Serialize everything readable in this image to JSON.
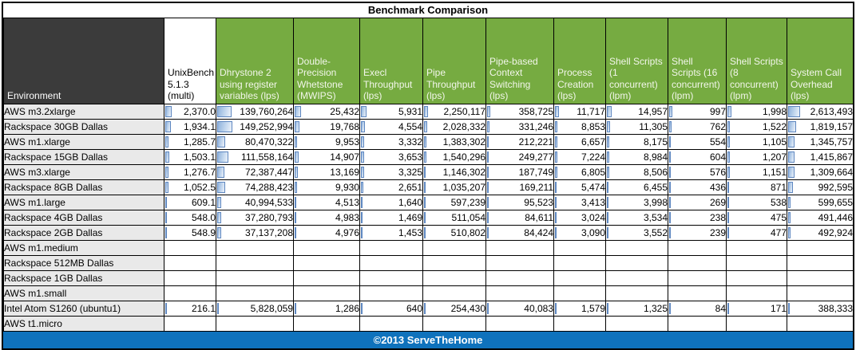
{
  "title": "Benchmark Comparison",
  "footer": {
    "text": "©2013 ServeTheHome"
  },
  "colors": {
    "header_dark": "#3b3b3b",
    "header_green": "#76ab41",
    "footer_blue": "#0f72bc",
    "databar_fill": "#c3d7ee",
    "databar_border": "#5e87c0",
    "env_cell_bg": "#e9e9e9"
  },
  "table": {
    "corner_header": "Environment",
    "columns": [
      {
        "label": "UnixBench 5.1.3 (multi)",
        "style": "plain"
      },
      {
        "label": "Dhrystone 2 using register variables (lps)",
        "style": "green"
      },
      {
        "label": "Double-Precision Whetstone (MWIPS)",
        "style": "green"
      },
      {
        "label": "Execl Throughput (lps)",
        "style": "green"
      },
      {
        "label": "Pipe Throughput (lps)",
        "style": "green"
      },
      {
        "label": "Pipe-based Context Switching (lps)",
        "style": "green"
      },
      {
        "label": "Process Creation (lps)",
        "style": "green"
      },
      {
        "label": "Shell Scripts (1 concurrent) (lpm)",
        "style": "green"
      },
      {
        "label": "Shell Scripts (16 concurrent) (lpm)",
        "style": "green"
      },
      {
        "label": "Shell Scripts (8 concurrent) (lpm)",
        "style": "green"
      },
      {
        "label": "System Call Overhead (lps)",
        "style": "green"
      }
    ],
    "rows": [
      {
        "env": "AWS m3.2xlarge",
        "values": [
          "2,370.0",
          "139,760,264",
          "25,432",
          "5,931",
          "2,250,117",
          "358,725",
          "11,717",
          "14,957",
          "997",
          "1,998",
          "2,613,493"
        ]
      },
      {
        "env": "Rackspace 30GB Dallas",
        "values": [
          "1,934.1",
          "149,252,994",
          "19,768",
          "4,554",
          "2,028,332",
          "331,246",
          "8,853",
          "11,305",
          "762",
          "1,522",
          "1,819,157"
        ]
      },
      {
        "env": "AWS m1.xlarge",
        "values": [
          "1,285.7",
          "80,470,322",
          "9,953",
          "3,332",
          "1,383,302",
          "212,221",
          "6,657",
          "8,175",
          "554",
          "1,105",
          "1,345,757"
        ]
      },
      {
        "env": "Rackspace 15GB Dallas",
        "values": [
          "1,503.1",
          "111,558,164",
          "14,907",
          "3,653",
          "1,540,296",
          "249,277",
          "7,224",
          "8,984",
          "604",
          "1,207",
          "1,415,867"
        ]
      },
      {
        "env": "AWS m3.xlarge",
        "values": [
          "1,276.7",
          "72,387,447",
          "13,169",
          "3,325",
          "1,146,302",
          "187,749",
          "6,805",
          "8,506",
          "576",
          "1,151",
          "1,309,664"
        ]
      },
      {
        "env": "Rackspace 8GB Dallas",
        "values": [
          "1,052.5",
          "74,288,423",
          "9,930",
          "2,651",
          "1,035,207",
          "169,211",
          "5,474",
          "6,455",
          "436",
          "871",
          "992,595"
        ]
      },
      {
        "env": "AWS m1.large",
        "values": [
          "609.1",
          "40,994,533",
          "4,513",
          "1,640",
          "597,239",
          "95,523",
          "3,413",
          "3,998",
          "269",
          "538",
          "599,655"
        ]
      },
      {
        "env": "Rackspace 4GB Dallas",
        "values": [
          "548.0",
          "37,280,793",
          "4,983",
          "1,469",
          "511,054",
          "84,611",
          "3,024",
          "3,534",
          "238",
          "475",
          "491,446"
        ]
      },
      {
        "env": "Rackspace 2GB Dallas",
        "values": [
          "548.9",
          "37,137,208",
          "4,976",
          "1,453",
          "510,802",
          "84,424",
          "3,090",
          "3,552",
          "239",
          "477",
          "492,924"
        ]
      },
      {
        "env": "AWS m1.medium",
        "values": [
          "",
          "",
          "",
          "",
          "",
          "",
          "",
          "",
          "",
          "",
          ""
        ]
      },
      {
        "env": "Rackspace 512MB Dallas",
        "values": [
          "",
          "",
          "",
          "",
          "",
          "",
          "",
          "",
          "",
          "",
          ""
        ]
      },
      {
        "env": "Rackspace 1GB Dallas",
        "values": [
          "",
          "",
          "",
          "",
          "",
          "",
          "",
          "",
          "",
          "",
          ""
        ]
      },
      {
        "env": "AWS m1.small",
        "values": [
          "",
          "",
          "",
          "",
          "",
          "",
          "",
          "",
          "",
          "",
          ""
        ]
      },
      {
        "env": "Intel Atom S1260 (ubuntu1)",
        "values": [
          "216.1",
          "5,828,059",
          "1,286",
          "640",
          "254,430",
          "40,083",
          "1,579",
          "1,325",
          "84",
          "171",
          "388,333"
        ]
      },
      {
        "env": "AWS t1.micro",
        "values": [
          "",
          "",
          "",
          "",
          "",
          "",
          "",
          "",
          "",
          "",
          ""
        ]
      }
    ]
  }
}
